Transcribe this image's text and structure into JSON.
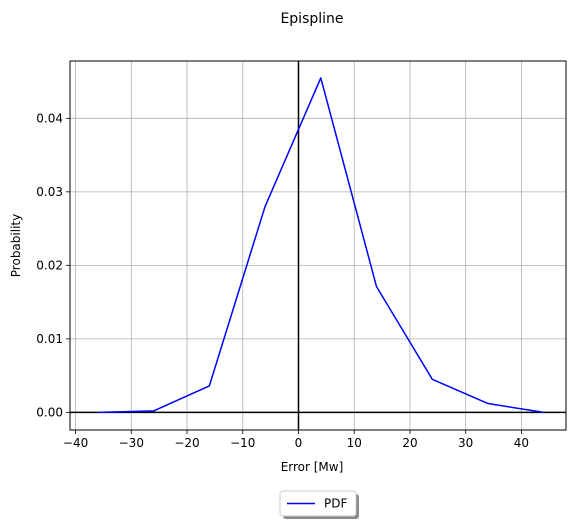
{
  "chart_data": {
    "type": "line",
    "title": "Epispline",
    "xlabel": "Error [Mw]",
    "ylabel": "Probability",
    "xlim": [
      -41,
      48
    ],
    "ylim": [
      -0.0024,
      0.0478
    ],
    "x_ticks": [
      -40,
      -30,
      -20,
      -10,
      0,
      10,
      20,
      30,
      40
    ],
    "y_ticks": [
      0.0,
      0.01,
      0.02,
      0.03,
      0.04
    ],
    "x_tick_labels": [
      "−40",
      "−30",
      "−20",
      "−10",
      "0",
      "10",
      "20",
      "30",
      "40"
    ],
    "y_tick_labels": [
      "0.00",
      "0.01",
      "0.02",
      "0.03",
      "0.04"
    ],
    "grid": true,
    "legend_position": "below-center",
    "reference_lines": {
      "x": 0,
      "y": 0
    },
    "series": [
      {
        "name": "PDF",
        "color": "#0000ff",
        "x": [
          -36,
          -26,
          -16,
          -6,
          4,
          14,
          24,
          34,
          44
        ],
        "y": [
          0.0,
          0.0002,
          0.0036,
          0.028,
          0.0455,
          0.0171,
          0.0045,
          0.0012,
          0.0
        ]
      }
    ]
  }
}
